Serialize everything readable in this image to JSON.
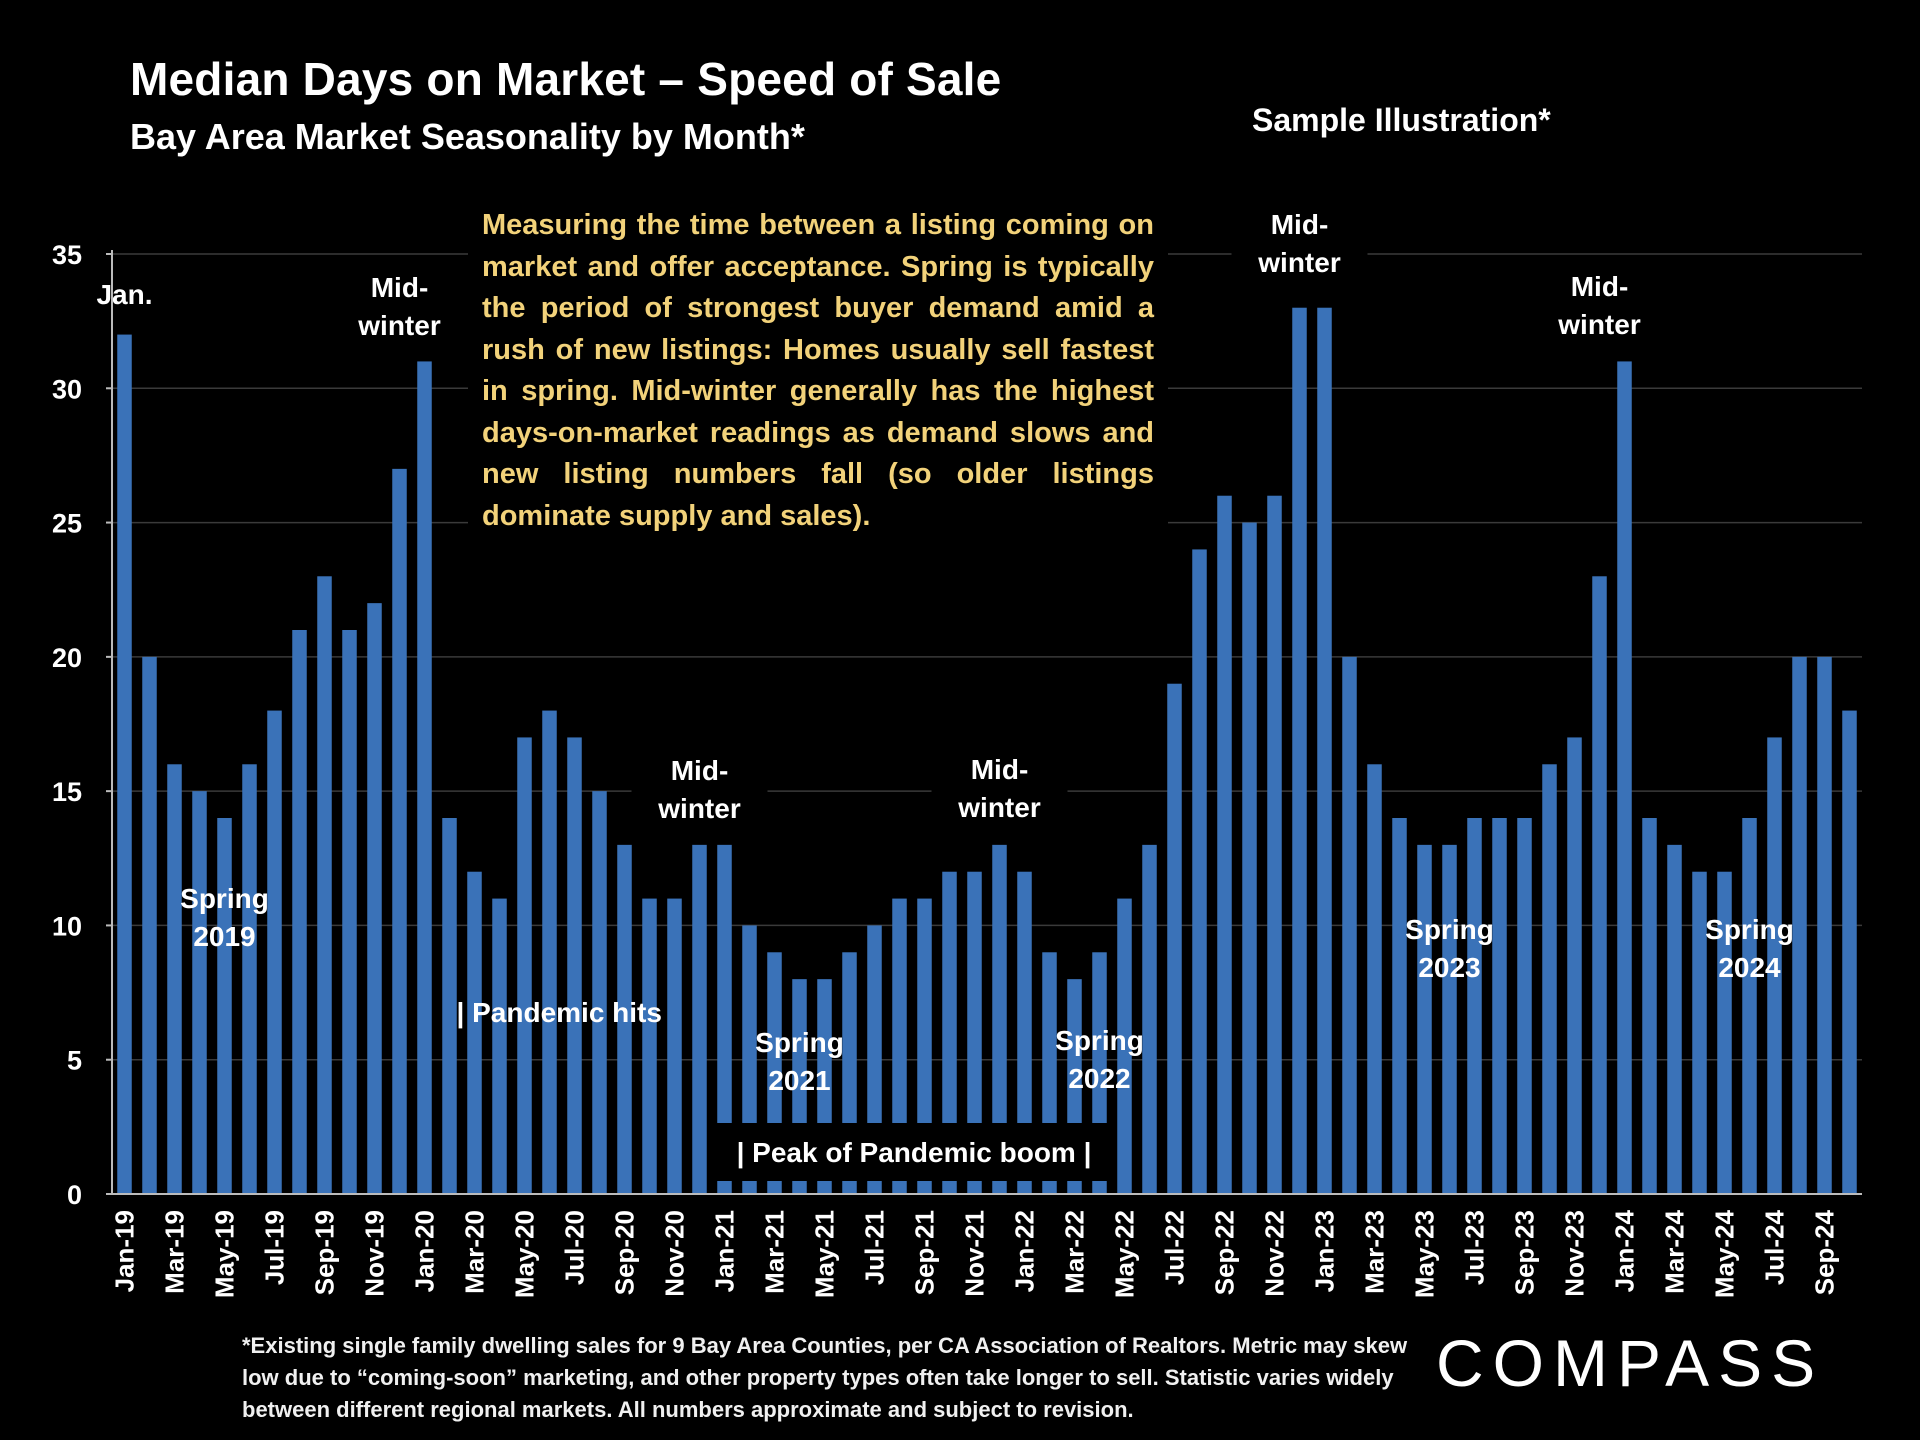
{
  "header": {
    "title": "Median Days on Market – Speed of Sale",
    "subtitle": "Bay Area Market Seasonality by Month*",
    "sample_label": "Sample Illustration*"
  },
  "callout_text": "Measuring the time between a listing coming on market and offer acceptance. Spring is typically the period of strongest buyer demand amid a rush of new listings: Homes usually sell fastest in spring. Mid-winter generally has the highest days-on-market readings as demand slows and new listing numbers fall (so older listings dominate supply and sales).",
  "footnote": "*Existing single family dwelling sales for 9 Bay Area Counties, per CA Association of Realtors. Metric may skew low due to “coming-soon” marketing, and other property types often take longer to sell. Statistic varies widely between different regional markets. All numbers approximate and subject to revision.",
  "logo_text": "COMPASS",
  "colors": {
    "bar": "#3a72b8",
    "background": "#000000",
    "callout_text": "#f2d27a",
    "gridline": "#3a3a3a"
  },
  "chart_data": {
    "type": "bar",
    "ylim": [
      0,
      35
    ],
    "yticks": [
      0,
      5,
      10,
      15,
      20,
      25,
      30,
      35
    ],
    "grid": true,
    "categories": [
      "Jan-19",
      "Feb-19",
      "Mar-19",
      "Apr-19",
      "May-19",
      "Jun-19",
      "Jul-19",
      "Aug-19",
      "Sep-19",
      "Oct-19",
      "Nov-19",
      "Dec-19",
      "Jan-20",
      "Feb-20",
      "Mar-20",
      "Apr-20",
      "May-20",
      "Jun-20",
      "Jul-20",
      "Aug-20",
      "Sep-20",
      "Oct-20",
      "Nov-20",
      "Dec-20",
      "Jan-21",
      "Feb-21",
      "Mar-21",
      "Apr-21",
      "May-21",
      "Jun-21",
      "Jul-21",
      "Aug-21",
      "Sep-21",
      "Oct-21",
      "Nov-21",
      "Dec-21",
      "Jan-22",
      "Feb-22",
      "Mar-22",
      "Apr-22",
      "May-22",
      "Jun-22",
      "Jul-22",
      "Aug-22",
      "Sep-22",
      "Oct-22",
      "Nov-22",
      "Dec-22",
      "Jan-23",
      "Feb-23",
      "Mar-23",
      "Apr-23",
      "May-23",
      "Jun-23",
      "Jul-23",
      "Aug-23",
      "Sep-23",
      "Oct-23",
      "Nov-23",
      "Dec-23",
      "Jan-24",
      "Feb-24",
      "Mar-24",
      "Apr-24",
      "May-24",
      "Jun-24",
      "Jul-24",
      "Aug-24",
      "Sep-24",
      "Oct-24"
    ],
    "shown_x_labels": [
      "Jan-19",
      "Mar-19",
      "May-19",
      "Jul-19",
      "Sep-19",
      "Nov-19",
      "Jan-20",
      "Mar-20",
      "May-20",
      "Jul-20",
      "Sep-20",
      "Nov-20",
      "Jan-21",
      "Mar-21",
      "May-21",
      "Jul-21",
      "Sep-21",
      "Nov-21",
      "Jan-22",
      "Mar-22",
      "May-22",
      "Jul-22",
      "Sep-22",
      "Nov-22",
      "Jan-23",
      "Mar-23",
      "May-23",
      "Jul-23",
      "Sep-23",
      "Nov-23",
      "Jan-24",
      "Mar-24",
      "May-24",
      "Jul-24",
      "Sep-24"
    ],
    "values": [
      32,
      20,
      16,
      15,
      14,
      16,
      18,
      21,
      23,
      21,
      22,
      27,
      31,
      14,
      12,
      11,
      17,
      18,
      17,
      15,
      13,
      11,
      11,
      13,
      13,
      10,
      9,
      8,
      8,
      9,
      10,
      11,
      11,
      12,
      12,
      13,
      12,
      9,
      8,
      9,
      11,
      13,
      19,
      24,
      26,
      25,
      26,
      33,
      33,
      20,
      16,
      14,
      13,
      13,
      14,
      14,
      14,
      16,
      17,
      23,
      31,
      14,
      13,
      12,
      12,
      14,
      17,
      20,
      20,
      18
    ],
    "annotations": [
      {
        "category": "Jan-19",
        "lines": [
          "Jan."
        ]
      },
      {
        "category": "Dec-19",
        "lines": [
          "Mid-",
          "winter"
        ]
      },
      {
        "category": "May-19",
        "lines": [
          "Spring",
          "2019"
        ]
      },
      {
        "category": "Mar-20",
        "lines": [
          "| Pandemic hits"
        ]
      },
      {
        "category": "Dec-20",
        "lines": [
          "Mid-",
          "winter"
        ]
      },
      {
        "category": "Apr-21",
        "lines": [
          "Spring",
          "2021"
        ]
      },
      {
        "category": "Dec-21",
        "lines": [
          "Mid-",
          "winter"
        ]
      },
      {
        "category": "Apr-22",
        "lines": [
          "Spring",
          "2022"
        ]
      },
      {
        "category": "Dec-22",
        "lines": [
          "Mid-",
          "winter"
        ]
      },
      {
        "category": "Jun-23",
        "lines": [
          "Spring",
          "2023"
        ]
      },
      {
        "category": "Dec-23",
        "lines": [
          "Mid-",
          "winter"
        ]
      },
      {
        "category": "Jun-24",
        "lines": [
          "Spring",
          "2024"
        ]
      },
      {
        "category": "Feb-21",
        "lines": [
          "| Peak of Pandemic boom |"
        ]
      }
    ]
  }
}
